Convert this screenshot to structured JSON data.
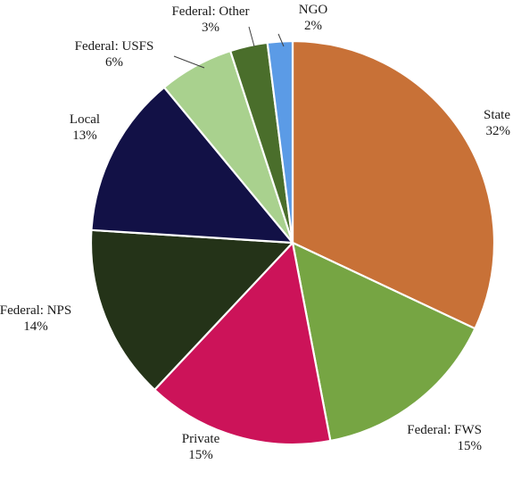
{
  "chart_data": {
    "type": "pie",
    "title": "",
    "legend": "none",
    "slices": [
      {
        "label": "State",
        "value": 32,
        "value_label": "32%",
        "color": "#C87137"
      },
      {
        "label": "Federal: FWS",
        "value": 15,
        "value_label": "15%",
        "color": "#76A543"
      },
      {
        "label": "Private",
        "value": 15,
        "value_label": "15%",
        "color": "#CC1359"
      },
      {
        "label": "Federal: NPS",
        "value": 14,
        "value_label": "14%",
        "color": "#243318"
      },
      {
        "label": "Local",
        "value": 13,
        "value_label": "13%",
        "color": "#121146"
      },
      {
        "label": "Federal: USFS",
        "value": 6,
        "value_label": "6%",
        "color": "#A9D18E"
      },
      {
        "label": "Federal: Other",
        "value": 3,
        "value_label": "3%",
        "color": "#4A6E2B"
      },
      {
        "label": "NGO",
        "value": 2,
        "value_label": "2%",
        "color": "#5B9BE6"
      }
    ]
  }
}
